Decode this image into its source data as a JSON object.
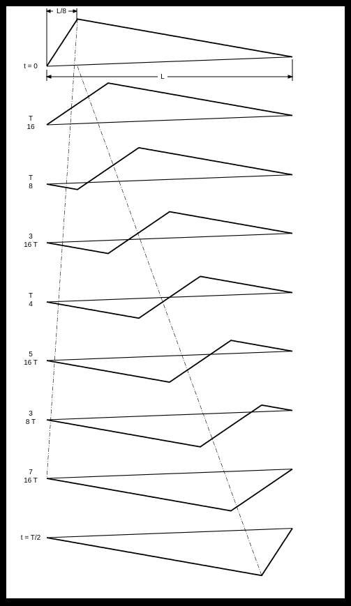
{
  "dimension_labels": {
    "segment": "L/8",
    "length": "L"
  },
  "snapshots": [
    {
      "label_lines": [
        "t = 0"
      ],
      "apex": 0.125
    },
    {
      "label_lines": [
        "T",
        "16"
      ],
      "apex": 0.25
    },
    {
      "label_lines": [
        "T",
        "8"
      ],
      "apex": 0.375
    },
    {
      "label_lines": [
        "3",
        "16 T"
      ],
      "apex": 0.5
    },
    {
      "label_lines": [
        "T",
        "4"
      ],
      "apex": 0.625
    },
    {
      "label_lines": [
        "5",
        "16 T"
      ],
      "apex": 0.75
    },
    {
      "label_lines": [
        "3",
        "8 T"
      ],
      "apex": 0.875
    },
    {
      "label_lines": [
        "7",
        "16 T"
      ],
      "apex": 1.0
    },
    {
      "label_lines": [
        "t = T/2"
      ],
      "apex": 1.0
    }
  ]
}
